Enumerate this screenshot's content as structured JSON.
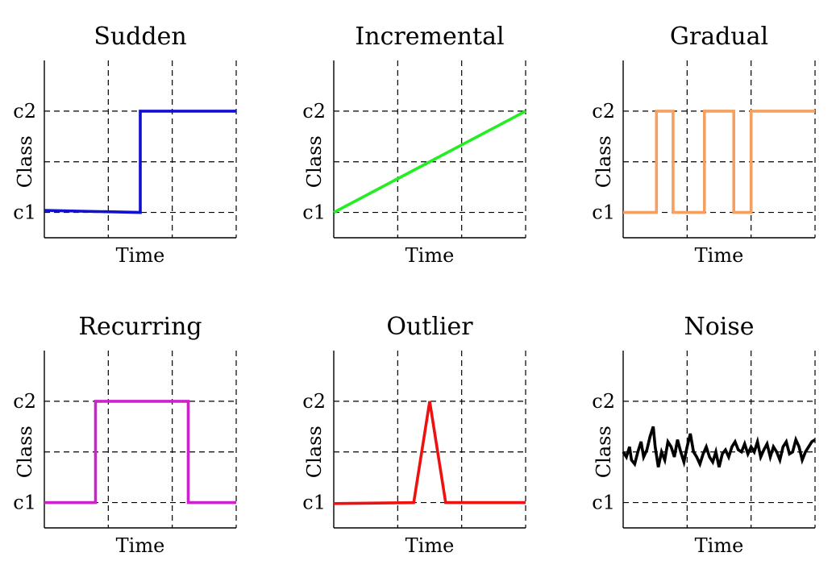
{
  "chart_data": [
    {
      "type": "line",
      "title": "Sudden",
      "xlabel": "Time",
      "ylabel": "Class",
      "yticks": [
        "c1",
        "",
        "c2"
      ],
      "ylim": [
        -0.25,
        1.5
      ],
      "xlim": [
        0,
        3
      ],
      "grid": true,
      "color": "#1010d0",
      "series": [
        {
          "x": [
            0,
            1.5,
            1.5,
            3
          ],
          "y": [
            0.02,
            0.0,
            1.0,
            1.0
          ]
        }
      ]
    },
    {
      "type": "line",
      "title": "Incremental",
      "xlabel": "Time",
      "ylabel": "Class",
      "yticks": [
        "c1",
        "",
        "c2"
      ],
      "ylim": [
        -0.25,
        1.5
      ],
      "xlim": [
        0,
        3
      ],
      "grid": true,
      "color": "#22ee22",
      "series": [
        {
          "x": [
            0,
            3
          ],
          "y": [
            0,
            1
          ]
        }
      ]
    },
    {
      "type": "line",
      "title": "Gradual",
      "xlabel": "Time",
      "ylabel": "Class",
      "yticks": [
        "c1",
        "",
        "c2"
      ],
      "ylim": [
        -0.25,
        1.5
      ],
      "xlim": [
        0,
        3
      ],
      "grid": true,
      "color": "#f5a060",
      "series": [
        {
          "x": [
            0,
            0.52,
            0.52,
            0.78,
            0.78,
            1.27,
            1.27,
            1.73,
            1.73,
            2.0,
            2.0,
            3.0
          ],
          "y": [
            0,
            0,
            1,
            1,
            0,
            0,
            1,
            1,
            0,
            0,
            1,
            1
          ]
        }
      ]
    },
    {
      "type": "line",
      "title": "Recurring",
      "xlabel": "Time",
      "ylabel": "Class",
      "yticks": [
        "c1",
        "",
        "c2"
      ],
      "ylim": [
        -0.25,
        1.5
      ],
      "xlim": [
        0,
        3
      ],
      "grid": true,
      "color": "#cc22cc",
      "series": [
        {
          "x": [
            0,
            0.8,
            0.8,
            2.25,
            2.25,
            3.0
          ],
          "y": [
            0,
            0,
            1,
            1,
            0,
            0
          ]
        }
      ]
    },
    {
      "type": "line",
      "title": "Outlier",
      "xlabel": "Time",
      "ylabel": "Class",
      "yticks": [
        "c1",
        "",
        "c2"
      ],
      "ylim": [
        -0.25,
        1.5
      ],
      "xlim": [
        0,
        3
      ],
      "grid": true,
      "color": "#ee1111",
      "series": [
        {
          "x": [
            0,
            1.25,
            1.5,
            1.75,
            3.0
          ],
          "y": [
            -0.01,
            0.0,
            1.0,
            0.0,
            0.0
          ]
        }
      ]
    },
    {
      "type": "line",
      "title": "Noise",
      "xlabel": "Time",
      "ylabel": "Class",
      "yticks": [
        "c1",
        "",
        "c2"
      ],
      "ylim": [
        -0.25,
        1.5
      ],
      "xlim": [
        0,
        3
      ],
      "grid": true,
      "color": "#000000",
      "series": [
        {
          "x": [
            0.0,
            0.05,
            0.1,
            0.13,
            0.18,
            0.23,
            0.28,
            0.32,
            0.37,
            0.42,
            0.47,
            0.5,
            0.55,
            0.6,
            0.65,
            0.7,
            0.75,
            0.8,
            0.85,
            0.9,
            0.95,
            1.0,
            1.05,
            1.1,
            1.15,
            1.2,
            1.25,
            1.3,
            1.35,
            1.4,
            1.45,
            1.5,
            1.55,
            1.6,
            1.65,
            1.7,
            1.75,
            1.8,
            1.85,
            1.9,
            1.95,
            2.0,
            2.05,
            2.1,
            2.15,
            2.2,
            2.25,
            2.3,
            2.35,
            2.4,
            2.45,
            2.5,
            2.55,
            2.6,
            2.65,
            2.7,
            2.75,
            2.8,
            2.85,
            2.9,
            2.95,
            3.0
          ],
          "y": [
            0.5,
            0.45,
            0.55,
            0.42,
            0.38,
            0.5,
            0.6,
            0.45,
            0.52,
            0.65,
            0.75,
            0.55,
            0.35,
            0.5,
            0.42,
            0.6,
            0.55,
            0.45,
            0.62,
            0.5,
            0.4,
            0.55,
            0.68,
            0.5,
            0.45,
            0.38,
            0.48,
            0.55,
            0.45,
            0.4,
            0.5,
            0.35,
            0.48,
            0.52,
            0.45,
            0.55,
            0.6,
            0.52,
            0.5,
            0.58,
            0.48,
            0.55,
            0.5,
            0.6,
            0.45,
            0.52,
            0.58,
            0.45,
            0.55,
            0.5,
            0.42,
            0.55,
            0.6,
            0.48,
            0.5,
            0.62,
            0.55,
            0.42,
            0.5,
            0.55,
            0.6,
            0.62
          ]
        }
      ]
    }
  ]
}
